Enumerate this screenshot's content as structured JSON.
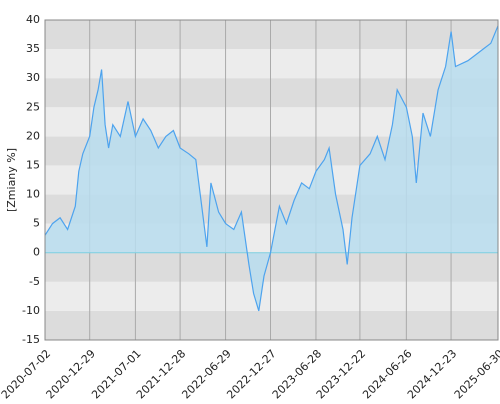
{
  "chart_data": {
    "type": "area",
    "y_label": "[Zmiany %]",
    "x": [
      "2020-07-02",
      "2020-08-01",
      "2020-09-01",
      "2020-10-01",
      "2020-11-01",
      "2020-11-15",
      "2020-12-01",
      "2020-12-29",
      "2021-01-15",
      "2021-02-01",
      "2021-02-15",
      "2021-03-01",
      "2021-03-15",
      "2021-04-01",
      "2021-05-01",
      "2021-06-01",
      "2021-07-01",
      "2021-08-01",
      "2021-09-01",
      "2021-10-01",
      "2021-11-01",
      "2021-12-01",
      "2021-12-28",
      "2022-02-01",
      "2022-03-01",
      "2022-04-15",
      "2022-05-01",
      "2022-06-01",
      "2022-06-29",
      "2022-08-01",
      "2022-09-01",
      "2022-10-01",
      "2022-10-20",
      "2022-11-10",
      "2022-12-01",
      "2022-12-27",
      "2023-02-01",
      "2023-03-01",
      "2023-04-01",
      "2023-05-01",
      "2023-06-01",
      "2023-06-28",
      "2023-08-01",
      "2023-08-20",
      "2023-09-15",
      "2023-10-15",
      "2023-11-01",
      "2023-11-20",
      "2023-12-22",
      "2024-02-01",
      "2024-03-01",
      "2024-04-01",
      "2024-05-01",
      "2024-05-20",
      "2024-06-26",
      "2024-07-20",
      "2024-08-05",
      "2024-09-01",
      "2024-10-01",
      "2024-11-01",
      "2024-12-01",
      "2024-12-23",
      "2025-01-10",
      "2025-03-01",
      "2025-04-01",
      "2025-05-01",
      "2025-06-01",
      "2025-06-30"
    ],
    "values": [
      3,
      5,
      6,
      4,
      8,
      14,
      17,
      20,
      25,
      28,
      31.5,
      22,
      18,
      22,
      20,
      26,
      20,
      23,
      21,
      18,
      20,
      21,
      18,
      17,
      16,
      1,
      12,
      7,
      5,
      4,
      7,
      -2,
      -7,
      -10,
      -4,
      0,
      8,
      5,
      9,
      12,
      11,
      14,
      16,
      18,
      10,
      4,
      -2,
      6,
      15,
      17,
      20,
      16,
      22,
      28,
      25,
      20,
      12,
      24,
      20,
      28,
      32,
      38,
      32,
      33,
      34,
      35,
      36,
      39
    ],
    "color": "#4da3ee",
    "area_color": "#b9ddef",
    "xlim": [
      "2020-07-02",
      "2025-06-30"
    ],
    "xticks": [
      "2020-07-02",
      "2020-12-29",
      "2021-07-01",
      "2021-12-28",
      "2022-06-29",
      "2022-12-27",
      "2023-06-28",
      "2023-12-22",
      "2024-06-26",
      "2024-12-23",
      "2025-06-30"
    ],
    "ylim": [
      -15,
      40
    ],
    "yticks": [
      -15,
      -10,
      -5,
      0,
      5,
      10,
      15,
      20,
      25,
      30,
      35,
      40
    ],
    "band_colors": [
      "#dcdcdc",
      "#ececec"
    ],
    "grid": true
  }
}
